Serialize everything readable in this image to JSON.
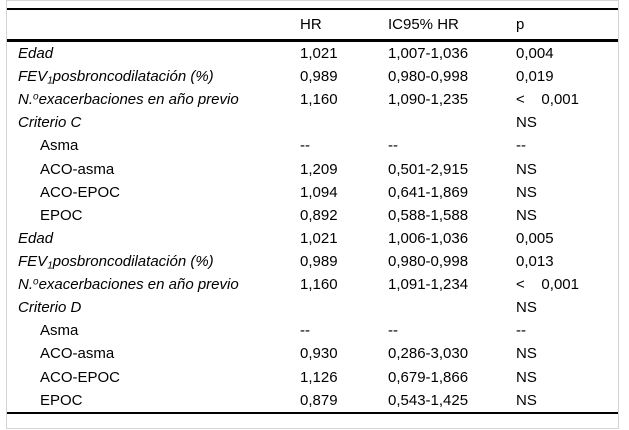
{
  "page": {
    "background_color": "#ffffff",
    "frame_border_color": "#d4d4d4",
    "rule_color": "#000000",
    "text_color": "#000000"
  },
  "table": {
    "header": {
      "label": "",
      "hr": "HR",
      "ic": "IC95% HR",
      "p": "p"
    },
    "rows": [
      {
        "label": [
          {
            "text": "Edad"
          }
        ],
        "italic": true,
        "indent": false,
        "hr": "1,021",
        "ic": "1,007-1,036",
        "p": "0,004"
      },
      {
        "label": [
          {
            "text": "FEV"
          },
          {
            "text": "1",
            "script": "sub"
          },
          {
            "text": "posbroncodilatación (%)"
          }
        ],
        "italic": true,
        "indent": false,
        "hr": "0,989",
        "ic": "0,980-0,998",
        "p": "0,019"
      },
      {
        "label": [
          {
            "text": "N."
          },
          {
            "text": "o",
            "script": "sup"
          },
          {
            "text": "exacerbaciones en año previo"
          }
        ],
        "italic": true,
        "indent": false,
        "hr": "1,160",
        "ic": "1,090-1,235",
        "p": "<    0,001"
      },
      {
        "label": [
          {
            "text": "Criterio C"
          }
        ],
        "italic": true,
        "indent": false,
        "hr": "",
        "ic": "",
        "p": "NS"
      },
      {
        "label": [
          {
            "text": "Asma"
          }
        ],
        "italic": false,
        "indent": true,
        "hr": "--",
        "ic": "--",
        "p": "--"
      },
      {
        "label": [
          {
            "text": "ACO-asma"
          }
        ],
        "italic": false,
        "indent": true,
        "hr": "1,209",
        "ic": "0,501-2,915",
        "p": "NS"
      },
      {
        "label": [
          {
            "text": "ACO-EPOC"
          }
        ],
        "italic": false,
        "indent": true,
        "hr": "1,094",
        "ic": "0,641-1,869",
        "p": "NS"
      },
      {
        "label": [
          {
            "text": "EPOC"
          }
        ],
        "italic": false,
        "indent": true,
        "hr": "0,892",
        "ic": "0,588-1,588",
        "p": "NS"
      },
      {
        "label": [
          {
            "text": "Edad"
          }
        ],
        "italic": true,
        "indent": false,
        "hr": "1,021",
        "ic": "1,006-1,036",
        "p": "0,005"
      },
      {
        "label": [
          {
            "text": "FEV"
          },
          {
            "text": "1",
            "script": "sub"
          },
          {
            "text": "posbroncodilatación (%)"
          }
        ],
        "italic": true,
        "indent": false,
        "hr": "0,989",
        "ic": "0,980-0,998",
        "p": "0,013"
      },
      {
        "label": [
          {
            "text": "N."
          },
          {
            "text": "o",
            "script": "sup"
          },
          {
            "text": "exacerbaciones en año previo"
          }
        ],
        "italic": true,
        "indent": false,
        "hr": "1,160",
        "ic": "1,091-1,234",
        "p": "<    0,001"
      },
      {
        "label": [
          {
            "text": "Criterio D"
          }
        ],
        "italic": true,
        "indent": false,
        "hr": "",
        "ic": "",
        "p": "NS"
      },
      {
        "label": [
          {
            "text": "Asma"
          }
        ],
        "italic": false,
        "indent": true,
        "hr": "--",
        "ic": "--",
        "p": "--"
      },
      {
        "label": [
          {
            "text": "ACO-asma"
          }
        ],
        "italic": false,
        "indent": true,
        "hr": "0,930",
        "ic": "0,286-3,030",
        "p": "NS"
      },
      {
        "label": [
          {
            "text": "ACO-EPOC"
          }
        ],
        "italic": false,
        "indent": true,
        "hr": "1,126",
        "ic": "0,679-1,866",
        "p": "NS"
      },
      {
        "label": [
          {
            "text": "EPOC"
          }
        ],
        "italic": false,
        "indent": true,
        "hr": "0,879",
        "ic": "0,543-1,425",
        "p": "NS"
      }
    ]
  }
}
